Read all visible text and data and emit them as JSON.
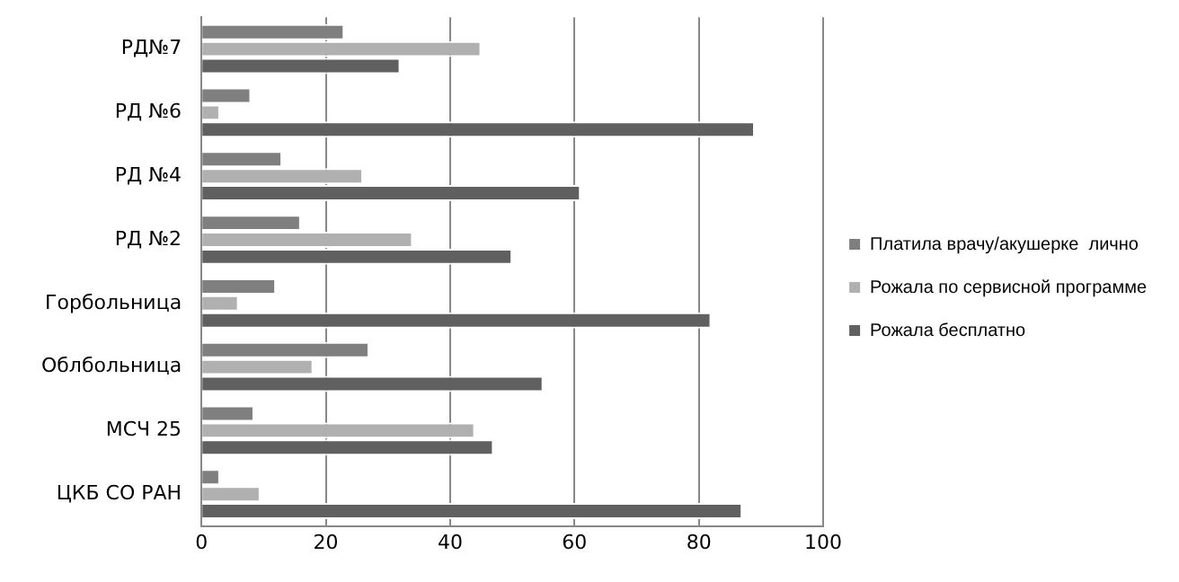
{
  "chart_data": {
    "type": "bar",
    "orientation": "horizontal",
    "categories": [
      "РД№7",
      "РД №6",
      "РД №4",
      "РД №2",
      "Горбольница",
      "Облбольница",
      "МСЧ 25",
      "ЦКБ СО РАН"
    ],
    "series": [
      {
        "name": "Платила врачу/акушерке  лично",
        "color": "#7f7f7f",
        "values": [
          23,
          8,
          13,
          16,
          12,
          27,
          8.5,
          3
        ]
      },
      {
        "name": "Рожала по сервисной программе",
        "color": "#b0b0b0",
        "values": [
          45,
          3,
          26,
          34,
          6,
          18,
          44,
          9.5
        ]
      },
      {
        "name": "Рожала бесплатно",
        "color": "#606060",
        "values": [
          32,
          89,
          61,
          50,
          82,
          55,
          47,
          87
        ]
      }
    ],
    "xlim": [
      0,
      100
    ],
    "xticks": [
      0,
      20,
      40,
      60,
      80,
      100
    ],
    "grid": "x",
    "legend": "right"
  }
}
